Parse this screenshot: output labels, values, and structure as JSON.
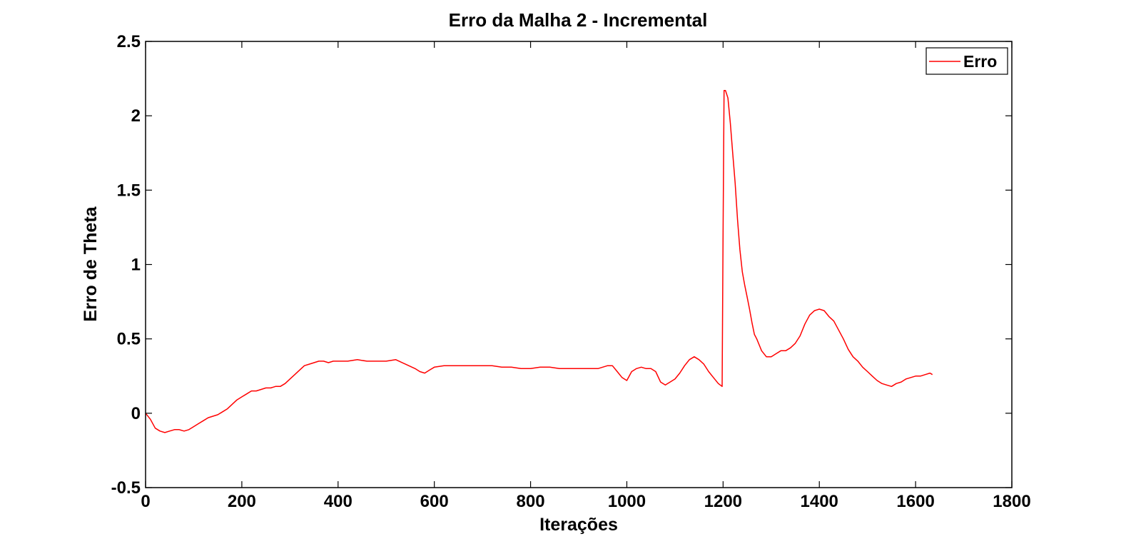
{
  "chart_data": {
    "type": "line",
    "title": "Erro da Malha 2 - Incremental",
    "xlabel": "Iterações",
    "ylabel": "Erro de Theta",
    "xlim": [
      0,
      1800
    ],
    "ylim": [
      -0.5,
      2.5
    ],
    "xticks": [
      0,
      200,
      400,
      600,
      800,
      1000,
      1200,
      1400,
      1600,
      1800
    ],
    "xtick_labels": [
      "0",
      "200",
      "400",
      "600",
      "800",
      "1000",
      "1200",
      "1400",
      "1600",
      "1800"
    ],
    "yticks": [
      -0.5,
      0,
      0.5,
      1,
      1.5,
      2,
      2.5
    ],
    "ytick_labels": [
      "-0.5",
      "0",
      "0.5",
      "1",
      "1.5",
      "2",
      "2.5"
    ],
    "grid": false,
    "legend_position": "top-right",
    "series": [
      {
        "name": "Erro",
        "color": "#ff0000",
        "x": [
          0,
          10,
          20,
          30,
          40,
          50,
          60,
          70,
          80,
          90,
          100,
          110,
          120,
          130,
          140,
          150,
          160,
          170,
          180,
          190,
          200,
          210,
          220,
          230,
          240,
          250,
          260,
          270,
          280,
          290,
          300,
          310,
          320,
          330,
          340,
          350,
          360,
          370,
          380,
          390,
          400,
          420,
          440,
          460,
          480,
          500,
          520,
          540,
          560,
          570,
          580,
          590,
          600,
          620,
          640,
          660,
          680,
          700,
          720,
          740,
          760,
          780,
          800,
          820,
          840,
          860,
          880,
          900,
          920,
          940,
          960,
          970,
          980,
          990,
          1000,
          1010,
          1020,
          1030,
          1040,
          1050,
          1060,
          1070,
          1080,
          1090,
          1100,
          1110,
          1120,
          1130,
          1140,
          1150,
          1160,
          1170,
          1180,
          1190,
          1198,
          1200,
          1202,
          1205,
          1210,
          1215,
          1220,
          1225,
          1230,
          1235,
          1240,
          1245,
          1250,
          1255,
          1260,
          1265,
          1270,
          1275,
          1280,
          1290,
          1300,
          1310,
          1320,
          1330,
          1340,
          1350,
          1360,
          1370,
          1380,
          1390,
          1400,
          1410,
          1420,
          1430,
          1440,
          1450,
          1460,
          1470,
          1480,
          1490,
          1500,
          1510,
          1520,
          1530,
          1540,
          1550,
          1560,
          1570,
          1580,
          1590,
          1600,
          1610,
          1620,
          1630,
          1635
        ],
        "y": [
          0.0,
          -0.04,
          -0.1,
          -0.12,
          -0.13,
          -0.12,
          -0.11,
          -0.11,
          -0.12,
          -0.11,
          -0.09,
          -0.07,
          -0.05,
          -0.03,
          -0.02,
          -0.01,
          0.01,
          0.03,
          0.06,
          0.09,
          0.11,
          0.13,
          0.15,
          0.15,
          0.16,
          0.17,
          0.17,
          0.18,
          0.18,
          0.2,
          0.23,
          0.26,
          0.29,
          0.32,
          0.33,
          0.34,
          0.35,
          0.35,
          0.34,
          0.35,
          0.35,
          0.35,
          0.36,
          0.35,
          0.35,
          0.35,
          0.36,
          0.33,
          0.3,
          0.28,
          0.27,
          0.29,
          0.31,
          0.32,
          0.32,
          0.32,
          0.32,
          0.32,
          0.32,
          0.31,
          0.31,
          0.3,
          0.3,
          0.31,
          0.31,
          0.3,
          0.3,
          0.3,
          0.3,
          0.3,
          0.32,
          0.32,
          0.28,
          0.24,
          0.22,
          0.28,
          0.3,
          0.31,
          0.3,
          0.3,
          0.28,
          0.21,
          0.19,
          0.21,
          0.23,
          0.27,
          0.32,
          0.36,
          0.38,
          0.36,
          0.33,
          0.28,
          0.24,
          0.2,
          0.18,
          1.2,
          2.17,
          2.17,
          2.12,
          1.95,
          1.75,
          1.55,
          1.3,
          1.1,
          0.95,
          0.86,
          0.78,
          0.7,
          0.61,
          0.53,
          0.5,
          0.46,
          0.42,
          0.38,
          0.38,
          0.4,
          0.42,
          0.42,
          0.44,
          0.47,
          0.52,
          0.6,
          0.66,
          0.69,
          0.7,
          0.69,
          0.65,
          0.62,
          0.56,
          0.5,
          0.43,
          0.38,
          0.35,
          0.31,
          0.28,
          0.25,
          0.22,
          0.2,
          0.19,
          0.18,
          0.2,
          0.21,
          0.23,
          0.24,
          0.25,
          0.25,
          0.26,
          0.27,
          0.26
        ]
      }
    ]
  }
}
